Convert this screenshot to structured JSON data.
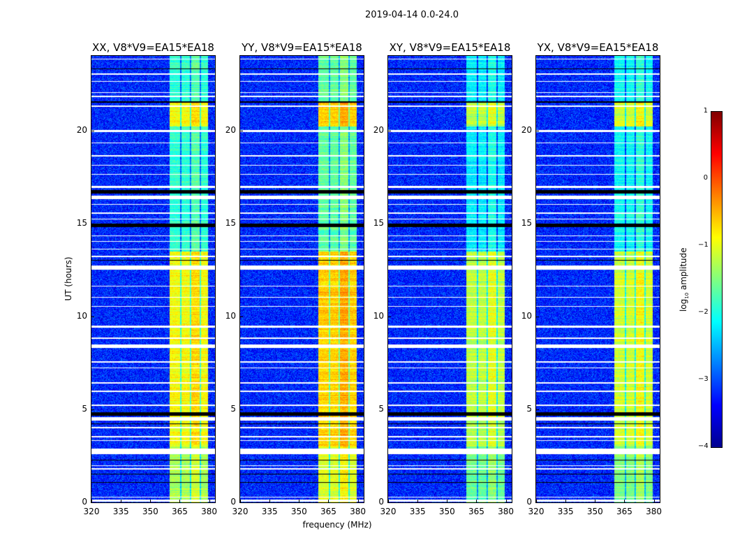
{
  "suptitle": "2019-04-14 0.0-24.0",
  "xlabel": "frequency (MHz)",
  "ylabel": "UT (hours)",
  "colorbar": {
    "label_prefix": "log",
    "label_sub": "10",
    "label_suffix": " amplitude",
    "ticks": [
      "1",
      "0",
      "−1",
      "−2",
      "−3",
      "−4"
    ],
    "tick_values": [
      1,
      0,
      -1,
      -2,
      -3,
      -4
    ],
    "range": [
      -4,
      1
    ],
    "colormap": "jet"
  },
  "chart_data": {
    "type": "heatmap",
    "xlim": [
      320,
      383
    ],
    "ylim": [
      0,
      24
    ],
    "xticks": [
      "320",
      "335",
      "350",
      "365",
      "380"
    ],
    "xtick_values": [
      320,
      335,
      350,
      365,
      380
    ],
    "yticks": [
      "0",
      "5",
      "10",
      "15",
      "20"
    ],
    "ytick_values": [
      0,
      5,
      10,
      15,
      20
    ],
    "background_level": -3.2,
    "band_range_mhz": [
      360,
      379.5
    ],
    "subband_gaps_mhz": [
      365.5,
      370.5,
      375.5
    ],
    "band_levels_by_time": [
      {
        "hours": [
          0,
          3
        ],
        "level": -1.3
      },
      {
        "hours": [
          3,
          13.5
        ],
        "level": -0.9
      },
      {
        "hours": [
          13.5,
          20.2
        ],
        "level": -1.9
      },
      {
        "hours": [
          20.2,
          21.5
        ],
        "level": -0.9
      },
      {
        "hours": [
          21.5,
          24
        ],
        "level": -1.9
      }
    ],
    "flagged_hours_white": [
      [
        0.05,
        0.15
      ],
      [
        0.25,
        0.3
      ],
      [
        1.75,
        1.85
      ],
      [
        1.95,
        2.0
      ],
      [
        2.6,
        2.9
      ],
      [
        3.3,
        3.35
      ],
      [
        3.5,
        3.55
      ],
      [
        4.0,
        4.05
      ],
      [
        4.4,
        4.6
      ],
      [
        5.2,
        5.25
      ],
      [
        5.95,
        6.0
      ],
      [
        6.4,
        6.45
      ],
      [
        7.2,
        7.25
      ],
      [
        7.5,
        7.6
      ],
      [
        8.3,
        8.5
      ],
      [
        8.8,
        8.85
      ],
      [
        9.4,
        9.5
      ],
      [
        10.5,
        10.55
      ],
      [
        11.0,
        11.05
      ],
      [
        11.6,
        11.65
      ],
      [
        12.5,
        12.75
      ],
      [
        13.2,
        13.25
      ],
      [
        13.6,
        13.65
      ],
      [
        14.0,
        14.05
      ],
      [
        14.3,
        14.35
      ],
      [
        15.2,
        15.25
      ],
      [
        15.5,
        15.6
      ],
      [
        16.0,
        16.05
      ],
      [
        16.3,
        16.5
      ],
      [
        16.9,
        17.0
      ],
      [
        17.6,
        17.65
      ],
      [
        18.1,
        18.15
      ],
      [
        18.6,
        18.65
      ],
      [
        19.3,
        19.35
      ],
      [
        19.9,
        20.0
      ],
      [
        21.25,
        21.35
      ],
      [
        21.8,
        21.85
      ],
      [
        22.0,
        22.05
      ],
      [
        22.6,
        22.65
      ],
      [
        23.0,
        23.05
      ],
      [
        23.8,
        23.85
      ]
    ],
    "flagged_hours_black": [
      [
        1.05,
        1.1
      ],
      [
        1.5,
        1.53
      ],
      [
        2.25,
        2.28
      ],
      [
        4.2,
        4.25
      ],
      [
        4.65,
        4.85
      ],
      [
        11.25,
        11.28
      ],
      [
        13.0,
        13.05
      ],
      [
        14.8,
        15.0
      ],
      [
        16.6,
        16.8
      ],
      [
        21.5,
        21.55
      ],
      [
        23.3,
        23.33
      ]
    ],
    "panels": [
      {
        "title": "XX, V8*V9=EA15*EA18",
        "level_offset": 0.0
      },
      {
        "title": "YY, V8*V9=EA15*EA18",
        "level_offset": 0.25
      },
      {
        "title": "XY, V8*V9=EA15*EA18",
        "level_offset": -0.3
      },
      {
        "title": "YX, V8*V9=EA15*EA18",
        "level_offset": -0.2
      }
    ]
  }
}
